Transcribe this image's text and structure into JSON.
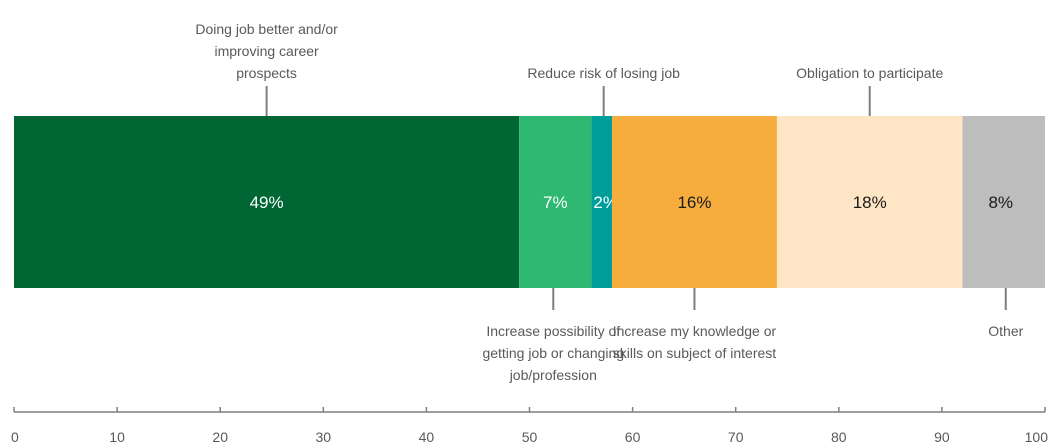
{
  "chart_data": {
    "type": "bar",
    "orientation": "horizontal",
    "stacked": true,
    "title": "",
    "xlabel": "",
    "ylabel": "",
    "xlim": [
      0,
      100
    ],
    "xticks": [
      0,
      10,
      20,
      30,
      40,
      50,
      60,
      70,
      80,
      90,
      100
    ],
    "grid": false,
    "series": [
      {
        "name": "Doing job better and/or improving career prospects",
        "value": 49,
        "label": "49%",
        "color": "#006633"
      },
      {
        "name": "Increase possibility of getting job or changing job/profession",
        "value": 7,
        "label": "7%",
        "color": "#2EB872"
      },
      {
        "name": "Reduce risk of losing job",
        "value": 2,
        "label": "2%",
        "color": "#009E9A"
      },
      {
        "name": "Increase my knowledge or skills on subject of interest",
        "value": 16,
        "label": "16%",
        "color": "#F7AD3E"
      },
      {
        "name": "Obligation to participate",
        "value": 18,
        "label": "18%",
        "color": "#FDE5C5"
      },
      {
        "name": "Other",
        "value": 8,
        "label": "8%",
        "color": "#BDBDBD"
      }
    ],
    "callouts": [
      {
        "series": 0,
        "position": "above",
        "lines": [
          "Doing job better and/or",
          "improving career",
          "prospects"
        ]
      },
      {
        "series": 1,
        "position": "below",
        "lines": [
          "Increase possibility of",
          "getting job or changing",
          "job/profession"
        ]
      },
      {
        "series": 2,
        "position": "above",
        "lines": [
          "Reduce risk of losing job"
        ]
      },
      {
        "series": 3,
        "position": "below",
        "lines": [
          "Increase my knowledge or",
          "skills on subject of interest"
        ]
      },
      {
        "series": 4,
        "position": "above",
        "lines": [
          "Obligation to participate"
        ]
      },
      {
        "series": 5,
        "position": "below",
        "lines": [
          "Other"
        ]
      }
    ]
  }
}
